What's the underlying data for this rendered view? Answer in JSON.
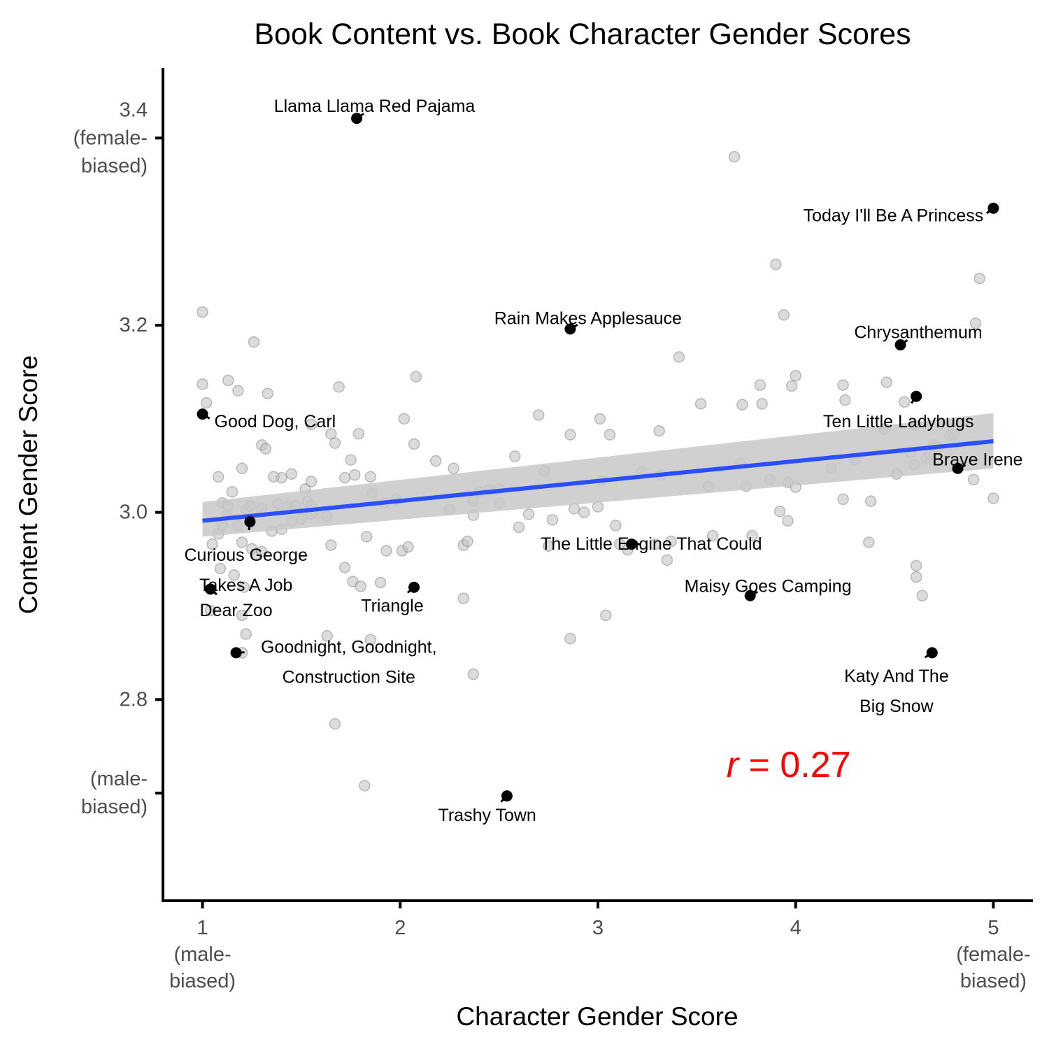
{
  "chart_data": {
    "type": "scatter",
    "title": "Book Content vs. Book Character Gender Scores",
    "xlabel": "Character Gender Score",
    "ylabel": "Content Gender Score",
    "xlim": [
      0.8,
      5.2
    ],
    "ylim": [
      2.585,
      3.475
    ],
    "x_ticks": [
      {
        "value": 1,
        "lines": [
          "1",
          "(male-",
          "biased)"
        ]
      },
      {
        "value": 2,
        "lines": [
          "2"
        ]
      },
      {
        "value": 3,
        "lines": [
          "3"
        ]
      },
      {
        "value": 4,
        "lines": [
          "4"
        ]
      },
      {
        "value": 5,
        "lines": [
          "5",
          "(female-",
          "biased)"
        ]
      }
    ],
    "y_ticks": [
      {
        "value": 3.4,
        "lines": [
          "3.4",
          "(female-",
          "biased)"
        ]
      },
      {
        "value": 3.2,
        "lines": [
          "3.2"
        ]
      },
      {
        "value": 3.0,
        "lines": [
          "3.0"
        ]
      },
      {
        "value": 2.8,
        "lines": [
          "2.8"
        ]
      },
      {
        "value": 2.7,
        "lines": [
          "(male-",
          "biased)"
        ]
      }
    ],
    "annotation": {
      "italic": "r",
      "rest": " = 0.27",
      "x": 3.65,
      "y": 2.73
    },
    "colors": {
      "point": "#000000",
      "background_point": "#bfbfbf",
      "trend": "#2b4fff",
      "ribbon": "#c8c8c8",
      "annotation": "#ff0000"
    },
    "trend": {
      "x": [
        1,
        5
      ],
      "y": [
        2.991,
        3.076
      ],
      "ci_lower": [
        2.974,
        3.047
      ],
      "ci_upper": [
        3.011,
        3.106
      ]
    },
    "highlighted": [
      {
        "name": "Llama Llama Red Pajama",
        "x": 1.78,
        "y": 3.421,
        "lines": [
          "Llama Llama Red Pajama"
        ],
        "lx": 1.87,
        "ly": 3.434,
        "anchor": "middle"
      },
      {
        "name": "Today I'll Be A Princess",
        "x": 5.0,
        "y": 3.325,
        "lines": [
          "Today I'll Be A Princess"
        ],
        "lx": 4.95,
        "ly": 3.317,
        "anchor": "end"
      },
      {
        "name": "Rain Makes Applesauce",
        "x": 2.86,
        "y": 3.196,
        "lines": [
          "Rain Makes Applesauce"
        ],
        "lx": 2.95,
        "ly": 3.207,
        "anchor": "middle"
      },
      {
        "name": "Chrysanthemum",
        "x": 4.53,
        "y": 3.179,
        "lines": [
          "Chrysanthemum"
        ],
        "lx": 4.62,
        "ly": 3.192,
        "anchor": "middle"
      },
      {
        "name": "Ten Little Ladybugs",
        "x": 4.61,
        "y": 3.124,
        "lines": [
          "Ten Little Ladybugs"
        ],
        "lx": 4.52,
        "ly": 3.097,
        "anchor": "middle"
      },
      {
        "name": "Good Dog, Carl",
        "x": 1.0,
        "y": 3.105,
        "lines": [
          "Good Dog, Carl"
        ],
        "lx": 1.06,
        "ly": 3.097,
        "anchor": "start"
      },
      {
        "name": "Brave Irene",
        "x": 4.82,
        "y": 3.047,
        "lines": [
          "Brave Irene"
        ],
        "lx": 4.92,
        "ly": 3.056,
        "anchor": "middle"
      },
      {
        "name": "Curious George Takes A Job",
        "x": 1.24,
        "y": 2.99,
        "lines": [
          "Curious George",
          "Takes A Job"
        ],
        "lx": 1.22,
        "ly": 2.954,
        "anchor": "middle"
      },
      {
        "name": "The Little Engine That Could",
        "x": 3.17,
        "y": 2.966,
        "lines": [
          "The Little Engine That Could"
        ],
        "lx": 3.27,
        "ly": 2.966,
        "anchor": "middle"
      },
      {
        "name": "Dear Zoo",
        "x": 1.04,
        "y": 2.918,
        "lines": [
          "Dear Zoo"
        ],
        "lx": 1.17,
        "ly": 2.895,
        "anchor": "middle"
      },
      {
        "name": "Triangle",
        "x": 2.07,
        "y": 2.92,
        "lines": [
          "Triangle"
        ],
        "lx": 1.96,
        "ly": 2.9,
        "anchor": "middle"
      },
      {
        "name": "Maisy Goes Camping",
        "x": 3.77,
        "y": 2.911,
        "lines": [
          "Maisy Goes Camping"
        ],
        "lx": 3.86,
        "ly": 2.921,
        "anchor": "middle"
      },
      {
        "name": "Goodnight, Goodnight, Construction Site",
        "x": 1.17,
        "y": 2.85,
        "lines": [
          "Goodnight, Goodnight,",
          "Construction Site"
        ],
        "lx": 1.74,
        "ly": 2.856,
        "anchor": "middle"
      },
      {
        "name": "Katy And The Big Snow",
        "x": 4.69,
        "y": 2.85,
        "lines": [
          "Katy And The",
          "Big Snow"
        ],
        "lx": 4.51,
        "ly": 2.825,
        "anchor": "middle"
      },
      {
        "name": "Trashy Town",
        "x": 2.54,
        "y": 2.697,
        "lines": [
          "Trashy Town"
        ],
        "lx": 2.44,
        "ly": 2.676,
        "anchor": "middle"
      }
    ],
    "background_points": [
      [
        1.0,
        3.214
      ],
      [
        1.0,
        3.137
      ],
      [
        1.02,
        3.117
      ],
      [
        1.13,
        3.141
      ],
      [
        1.18,
        3.13
      ],
      [
        1.26,
        3.182
      ],
      [
        1.33,
        3.127
      ],
      [
        1.2,
        3.047
      ],
      [
        1.08,
        3.038
      ],
      [
        1.15,
        3.022
      ],
      [
        1.1,
        3.01
      ],
      [
        1.13,
        3.007
      ],
      [
        1.22,
        3.003
      ],
      [
        1.24,
        3.007
      ],
      [
        1.3,
        3.004
      ],
      [
        1.38,
        3.009
      ],
      [
        1.43,
        3.006
      ],
      [
        1.47,
        3.007
      ],
      [
        1.53,
        3.012
      ],
      [
        1.55,
        3.007
      ],
      [
        1.58,
        2.998
      ],
      [
        1.52,
        3.025
      ],
      [
        1.55,
        3.033
      ],
      [
        1.45,
        3.041
      ],
      [
        1.4,
        3.037
      ],
      [
        1.36,
        3.038
      ],
      [
        1.3,
        3.072
      ],
      [
        1.32,
        3.068
      ],
      [
        1.55,
        3.094
      ],
      [
        1.65,
        3.084
      ],
      [
        1.67,
        3.074
      ],
      [
        1.72,
        3.037
      ],
      [
        1.75,
        3.056
      ],
      [
        1.77,
        3.04
      ],
      [
        1.79,
        3.084
      ],
      [
        1.69,
        3.134
      ],
      [
        1.05,
        2.966
      ],
      [
        1.08,
        2.977
      ],
      [
        1.1,
        2.986
      ],
      [
        1.12,
        2.997
      ],
      [
        1.18,
        2.986
      ],
      [
        1.2,
        2.968
      ],
      [
        1.25,
        2.961
      ],
      [
        1.27,
        2.955
      ],
      [
        1.3,
        2.958
      ],
      [
        1.35,
        2.98
      ],
      [
        1.4,
        2.982
      ],
      [
        1.45,
        2.99
      ],
      [
        1.5,
        2.993
      ],
      [
        1.55,
        2.998
      ],
      [
        1.63,
        2.996
      ],
      [
        1.65,
        2.965
      ],
      [
        1.72,
        2.941
      ],
      [
        1.76,
        2.926
      ],
      [
        1.8,
        2.921
      ],
      [
        1.83,
        2.974
      ],
      [
        1.85,
        3.038
      ],
      [
        1.86,
        3.02
      ],
      [
        1.9,
        2.925
      ],
      [
        1.93,
        2.959
      ],
      [
        1.92,
        3.01
      ],
      [
        1.98,
        3.014
      ],
      [
        2.01,
        2.959
      ],
      [
        2.02,
        3.1
      ],
      [
        2.04,
        2.963
      ],
      [
        2.07,
        3.073
      ],
      [
        2.08,
        3.145
      ],
      [
        2.18,
        3.055
      ],
      [
        2.25,
        3.003
      ],
      [
        2.27,
        3.047
      ],
      [
        2.32,
        2.908
      ],
      [
        2.32,
        2.965
      ],
      [
        2.34,
        2.969
      ],
      [
        2.37,
        2.997
      ],
      [
        2.37,
        3.012
      ],
      [
        2.4,
        3.022
      ],
      [
        2.45,
        3.024
      ],
      [
        2.5,
        3.01
      ],
      [
        2.5,
        3.025
      ],
      [
        2.58,
        3.06
      ],
      [
        2.6,
        2.984
      ],
      [
        2.65,
        2.998
      ],
      [
        2.7,
        3.104
      ],
      [
        2.73,
        3.044
      ],
      [
        2.75,
        2.964
      ],
      [
        2.77,
        2.992
      ],
      [
        2.86,
        3.083
      ],
      [
        2.88,
        3.004
      ],
      [
        2.93,
        3.0
      ],
      [
        3.0,
        3.006
      ],
      [
        3.01,
        3.1
      ],
      [
        3.02,
        3.034
      ],
      [
        3.06,
        3.083
      ],
      [
        3.09,
        2.986
      ],
      [
        3.11,
        2.966
      ],
      [
        3.15,
        2.96
      ],
      [
        3.22,
        3.043
      ],
      [
        3.29,
        2.966
      ],
      [
        3.31,
        3.087
      ],
      [
        3.32,
        3.04
      ],
      [
        3.35,
        2.949
      ],
      [
        3.37,
        2.969
      ],
      [
        3.41,
        3.166
      ],
      [
        3.52,
        3.116
      ],
      [
        3.56,
        3.028
      ],
      [
        3.58,
        2.975
      ],
      [
        3.72,
        3.052
      ],
      [
        3.73,
        3.115
      ],
      [
        3.75,
        3.028
      ],
      [
        3.78,
        2.975
      ],
      [
        3.82,
        3.136
      ],
      [
        3.83,
        3.116
      ],
      [
        3.87,
        3.035
      ],
      [
        3.9,
        3.265
      ],
      [
        3.92,
        3.001
      ],
      [
        3.94,
        3.211
      ],
      [
        3.96,
        2.991
      ],
      [
        3.96,
        3.032
      ],
      [
        3.98,
        3.135
      ],
      [
        4.0,
        3.146
      ],
      [
        4.0,
        3.027
      ],
      [
        4.18,
        3.047
      ],
      [
        4.24,
        3.136
      ],
      [
        4.25,
        3.12
      ],
      [
        4.24,
        3.014
      ],
      [
        4.3,
        3.056
      ],
      [
        4.37,
        2.968
      ],
      [
        4.38,
        3.012
      ],
      [
        4.45,
        3.089
      ],
      [
        4.46,
        3.139
      ],
      [
        4.51,
        3.041
      ],
      [
        4.55,
        3.118
      ],
      [
        4.58,
        3.064
      ],
      [
        4.6,
        3.093
      ],
      [
        4.6,
        3.051
      ],
      [
        4.61,
        2.943
      ],
      [
        4.61,
        2.931
      ],
      [
        4.64,
        2.911
      ],
      [
        4.66,
        3.058
      ],
      [
        4.68,
        3.062
      ],
      [
        4.7,
        3.072
      ],
      [
        4.72,
        3.07
      ],
      [
        4.78,
        3.082
      ],
      [
        4.8,
        3.083
      ],
      [
        4.9,
        3.035
      ],
      [
        4.91,
        3.202
      ],
      [
        4.93,
        3.25
      ],
      [
        5.0,
        3.015
      ],
      [
        1.04,
        2.895
      ],
      [
        1.09,
        2.94
      ],
      [
        1.16,
        2.933
      ],
      [
        1.2,
        2.89
      ],
      [
        1.22,
        2.87
      ],
      [
        1.21,
        2.92
      ],
      [
        1.2,
        2.85
      ],
      [
        1.63,
        2.868
      ],
      [
        1.85,
        2.864
      ],
      [
        2.37,
        2.827
      ],
      [
        1.67,
        2.774
      ],
      [
        1.82,
        2.708
      ],
      [
        2.86,
        2.865
      ],
      [
        3.04,
        2.89
      ],
      [
        3.69,
        3.38
      ]
    ]
  }
}
